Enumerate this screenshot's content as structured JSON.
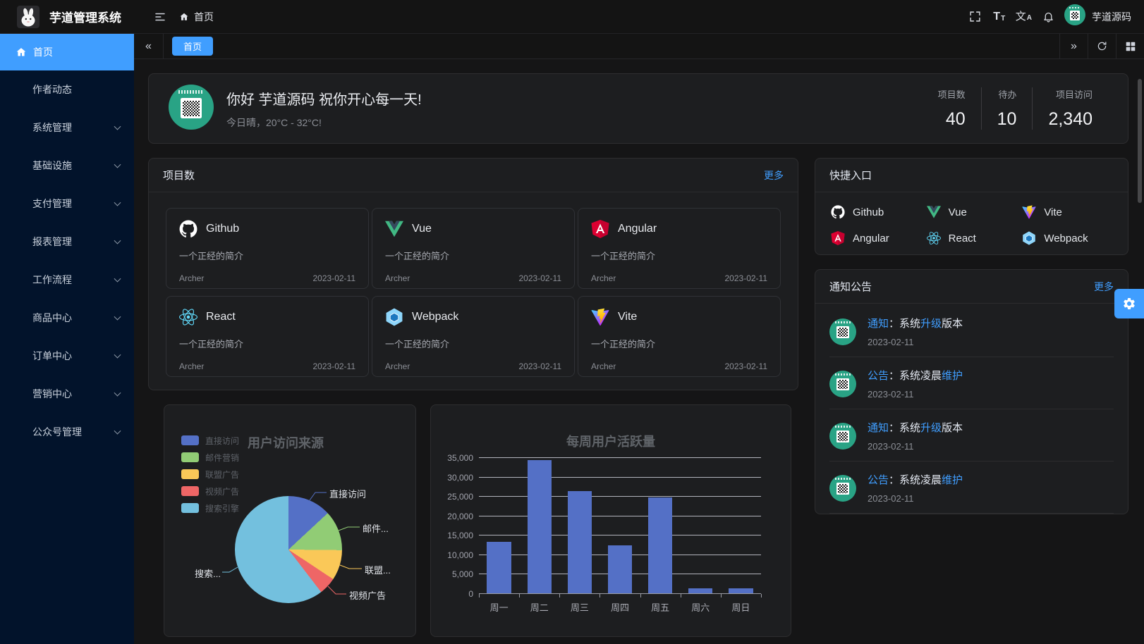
{
  "colors": {
    "accent": "#409eff",
    "sidebar_bg": "#02132b",
    "card_bg": "#1d1e20"
  },
  "header": {
    "app_title": "芋道管理系统",
    "breadcrumb": "首页",
    "username": "芋道源码",
    "icons": [
      "menu-fold-icon",
      "fullscreen-icon",
      "font-size-icon",
      "language-icon",
      "bell-icon"
    ]
  },
  "sidebar": {
    "items": [
      {
        "label": "首页",
        "active": true,
        "icon": "home-icon",
        "children": false
      },
      {
        "label": "作者动态",
        "active": false,
        "children": false
      },
      {
        "label": "系统管理",
        "active": false,
        "children": true
      },
      {
        "label": "基础设施",
        "active": false,
        "children": true
      },
      {
        "label": "支付管理",
        "active": false,
        "children": true
      },
      {
        "label": "报表管理",
        "active": false,
        "children": true
      },
      {
        "label": "工作流程",
        "active": false,
        "children": true
      },
      {
        "label": "商品中心",
        "active": false,
        "children": true
      },
      {
        "label": "订单中心",
        "active": false,
        "children": true
      },
      {
        "label": "营销中心",
        "active": false,
        "children": true
      },
      {
        "label": "公众号管理",
        "active": false,
        "children": true
      }
    ]
  },
  "tabs": {
    "active_tab": "首页"
  },
  "welcome": {
    "greeting": "你好 芋道源码 祝你开心每一天!",
    "weather": "今日晴，20°C - 32°C!",
    "stats": [
      {
        "label": "项目数",
        "value": "40"
      },
      {
        "label": "待办",
        "value": "10"
      },
      {
        "label": "项目访问",
        "value": "2,340"
      }
    ]
  },
  "projects": {
    "title": "项目数",
    "more_label": "更多",
    "items": [
      {
        "name": "Github",
        "icon": "github-icon",
        "desc": "一个正经的简介",
        "author": "Archer",
        "date": "2023-02-11"
      },
      {
        "name": "Vue",
        "icon": "vue-icon",
        "desc": "一个正经的简介",
        "author": "Archer",
        "date": "2023-02-11"
      },
      {
        "name": "Angular",
        "icon": "angular-icon",
        "desc": "一个正经的简介",
        "author": "Archer",
        "date": "2023-02-11"
      },
      {
        "name": "React",
        "icon": "react-icon",
        "desc": "一个正经的简介",
        "author": "Archer",
        "date": "2023-02-11"
      },
      {
        "name": "Webpack",
        "icon": "webpack-icon",
        "desc": "一个正经的简介",
        "author": "Archer",
        "date": "2023-02-11"
      },
      {
        "name": "Vite",
        "icon": "vite-icon",
        "desc": "一个正经的简介",
        "author": "Archer",
        "date": "2023-02-11"
      }
    ]
  },
  "shortcuts": {
    "title": "快捷入口",
    "items": [
      {
        "name": "Github",
        "icon": "github-icon"
      },
      {
        "name": "Vue",
        "icon": "vue-icon"
      },
      {
        "name": "Vite",
        "icon": "vite-icon"
      },
      {
        "name": "Angular",
        "icon": "angular-icon"
      },
      {
        "name": "React",
        "icon": "react-icon"
      },
      {
        "name": "Webpack",
        "icon": "webpack-icon"
      }
    ]
  },
  "notices": {
    "title": "通知公告",
    "more_label": "更多",
    "items": [
      {
        "title_parts": [
          {
            "text": "通知",
            "highlight": true
          },
          {
            "text": "：系统",
            "highlight": false
          },
          {
            "text": "升级",
            "highlight": true
          },
          {
            "text": "版本",
            "highlight": false
          }
        ],
        "date": "2023-02-11"
      },
      {
        "title_parts": [
          {
            "text": "公告",
            "highlight": true
          },
          {
            "text": "：系统凌晨",
            "highlight": false
          },
          {
            "text": "维护",
            "highlight": true
          }
        ],
        "date": "2023-02-11"
      },
      {
        "title_parts": [
          {
            "text": "通知",
            "highlight": true
          },
          {
            "text": "：系统",
            "highlight": false
          },
          {
            "text": "升级",
            "highlight": true
          },
          {
            "text": "版本",
            "highlight": false
          }
        ],
        "date": "2023-02-11"
      },
      {
        "title_parts": [
          {
            "text": "公告",
            "highlight": true
          },
          {
            "text": "：系统凌晨",
            "highlight": false
          },
          {
            "text": "维护",
            "highlight": true
          }
        ],
        "date": "2023-02-11"
      }
    ]
  },
  "chart_data": [
    {
      "type": "pie",
      "title": "用户访问来源",
      "legend_position": "left",
      "series": [
        {
          "name": "直接访问",
          "value": 335,
          "color": "#5470c6",
          "callout_label": "直接访问"
        },
        {
          "name": "邮件营销",
          "value": 310,
          "color": "#91cc75",
          "callout_label": "邮件..."
        },
        {
          "name": "联盟广告",
          "value": 234,
          "color": "#fac858",
          "callout_label": "联盟..."
        },
        {
          "name": "视频广告",
          "value": 135,
          "color": "#ee6666",
          "callout_label": "视频广告"
        },
        {
          "name": "搜索引擎",
          "value": 1548,
          "color": "#73c0de",
          "callout_label": "搜索..."
        }
      ]
    },
    {
      "type": "bar",
      "title": "每周用户活跃量",
      "categories": [
        "周一",
        "周二",
        "周三",
        "周四",
        "周五",
        "周六",
        "周日"
      ],
      "values": [
        13253,
        34235,
        26321,
        12340,
        24643,
        1322,
        1324
      ],
      "xlabel": "",
      "ylabel": "",
      "ylim": [
        0,
        35000
      ],
      "ytick_step": 5000,
      "bar_color": "#5470c6",
      "grid": true
    }
  ]
}
